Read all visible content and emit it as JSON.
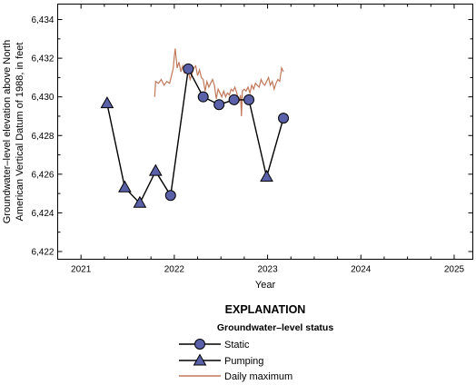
{
  "colors": {
    "marker_fill": "#5b61a8",
    "marker_stroke": "#000000",
    "line": "#000000",
    "daily_max": "#c0785a"
  },
  "chart_data": {
    "type": "line",
    "xlabel": "Year",
    "ylabel_lines": [
      "Groundwater–level elevation above North",
      "American Vertical Datum of 1988, in feet"
    ],
    "xlim": [
      2020.75,
      2025.2
    ],
    "ylim": [
      6421.6,
      6434.8
    ],
    "x_ticks": [
      2021,
      2022,
      2023,
      2024,
      2025
    ],
    "x_tick_labels": [
      "2021",
      "2022",
      "2023",
      "2024",
      "2025"
    ],
    "y_ticks": [
      6422,
      6424,
      6426,
      6428,
      6430,
      6432,
      6434
    ],
    "y_tick_labels": [
      "6,422",
      "6,424",
      "6,426",
      "6,428",
      "6,430",
      "6,432",
      "6,434"
    ],
    "grid": false,
    "measurements": [
      {
        "x": 2021.28,
        "y": 6429.65,
        "status": "Pumping"
      },
      {
        "x": 2021.47,
        "y": 6425.3,
        "status": "Pumping"
      },
      {
        "x": 2021.63,
        "y": 6424.5,
        "status": "Pumping"
      },
      {
        "x": 2021.8,
        "y": 6426.15,
        "status": "Pumping"
      },
      {
        "x": 2021.96,
        "y": 6424.9,
        "status": "Static"
      },
      {
        "x": 2022.15,
        "y": 6431.45,
        "status": "Static"
      },
      {
        "x": 2022.31,
        "y": 6430.0,
        "status": "Static"
      },
      {
        "x": 2022.48,
        "y": 6429.6,
        "status": "Static"
      },
      {
        "x": 2022.64,
        "y": 6429.85,
        "status": "Static"
      },
      {
        "x": 2022.8,
        "y": 6429.85,
        "status": "Static"
      },
      {
        "x": 2022.99,
        "y": 6425.85,
        "status": "Pumping"
      },
      {
        "x": 2023.17,
        "y": 6428.9,
        "status": "Static"
      }
    ],
    "series": [
      {
        "name": "Daily maximum",
        "x": [
          2021.79,
          2021.8,
          2021.83,
          2021.86,
          2021.89,
          2021.92,
          2021.95,
          2021.97,
          2021.99,
          2022.0,
          2022.01,
          2022.03,
          2022.05,
          2022.07,
          2022.09,
          2022.11,
          2022.13,
          2022.15,
          2022.17,
          2022.19,
          2022.21,
          2022.23,
          2022.25,
          2022.27,
          2022.29,
          2022.31,
          2022.33,
          2022.35,
          2022.37,
          2022.39,
          2022.41,
          2022.43,
          2022.45,
          2022.47,
          2022.49,
          2022.51,
          2022.53,
          2022.55,
          2022.57,
          2022.59,
          2022.61,
          2022.63,
          2022.65,
          2022.67,
          2022.69,
          2022.71,
          2022.72,
          2022.73,
          2022.75,
          2022.77,
          2022.79,
          2022.81,
          2022.83,
          2022.85,
          2022.87,
          2022.89,
          2022.91,
          2022.93,
          2022.95,
          2022.97,
          2022.99,
          2023.01,
          2023.03,
          2023.05,
          2023.07,
          2023.09,
          2023.11,
          2023.13,
          2023.15,
          2023.17
        ],
        "values": [
          6430.0,
          6430.8,
          6430.7,
          6430.9,
          6430.6,
          6430.8,
          6430.7,
          6431.1,
          6431.5,
          6432.1,
          6432.5,
          6431.5,
          6431.8,
          6431.3,
          6431.6,
          6431.2,
          6431.7,
          6431.3,
          6430.9,
          6431.2,
          6431.5,
          6431.6,
          6431.1,
          6431.4,
          6431.0,
          6430.9,
          6430.3,
          6430.8,
          6430.5,
          6430.7,
          6430.9,
          6430.6,
          6429.9,
          6430.4,
          6430.2,
          6430.0,
          6430.3,
          6430.0,
          6430.2,
          6430.1,
          6430.4,
          6430.3,
          6430.5,
          6430.2,
          6429.7,
          6430.1,
          6429.0,
          6430.3,
          6430.4,
          6430.3,
          6430.5,
          6430.2,
          6430.6,
          6430.4,
          6430.7,
          6430.6,
          6430.5,
          6430.9,
          6430.7,
          6430.6,
          6430.8,
          6431.0,
          6430.6,
          6430.8,
          6430.4,
          6430.7,
          6430.9,
          6430.8,
          6431.5,
          6431.3
        ]
      }
    ]
  },
  "legend": {
    "title": "EXPLANATION",
    "subtitle": "Groundwater–level status",
    "items": [
      {
        "label": "Static",
        "marker": "circle"
      },
      {
        "label": "Pumping",
        "marker": "triangle"
      },
      {
        "label": "Daily maximum",
        "marker": "line"
      }
    ]
  }
}
